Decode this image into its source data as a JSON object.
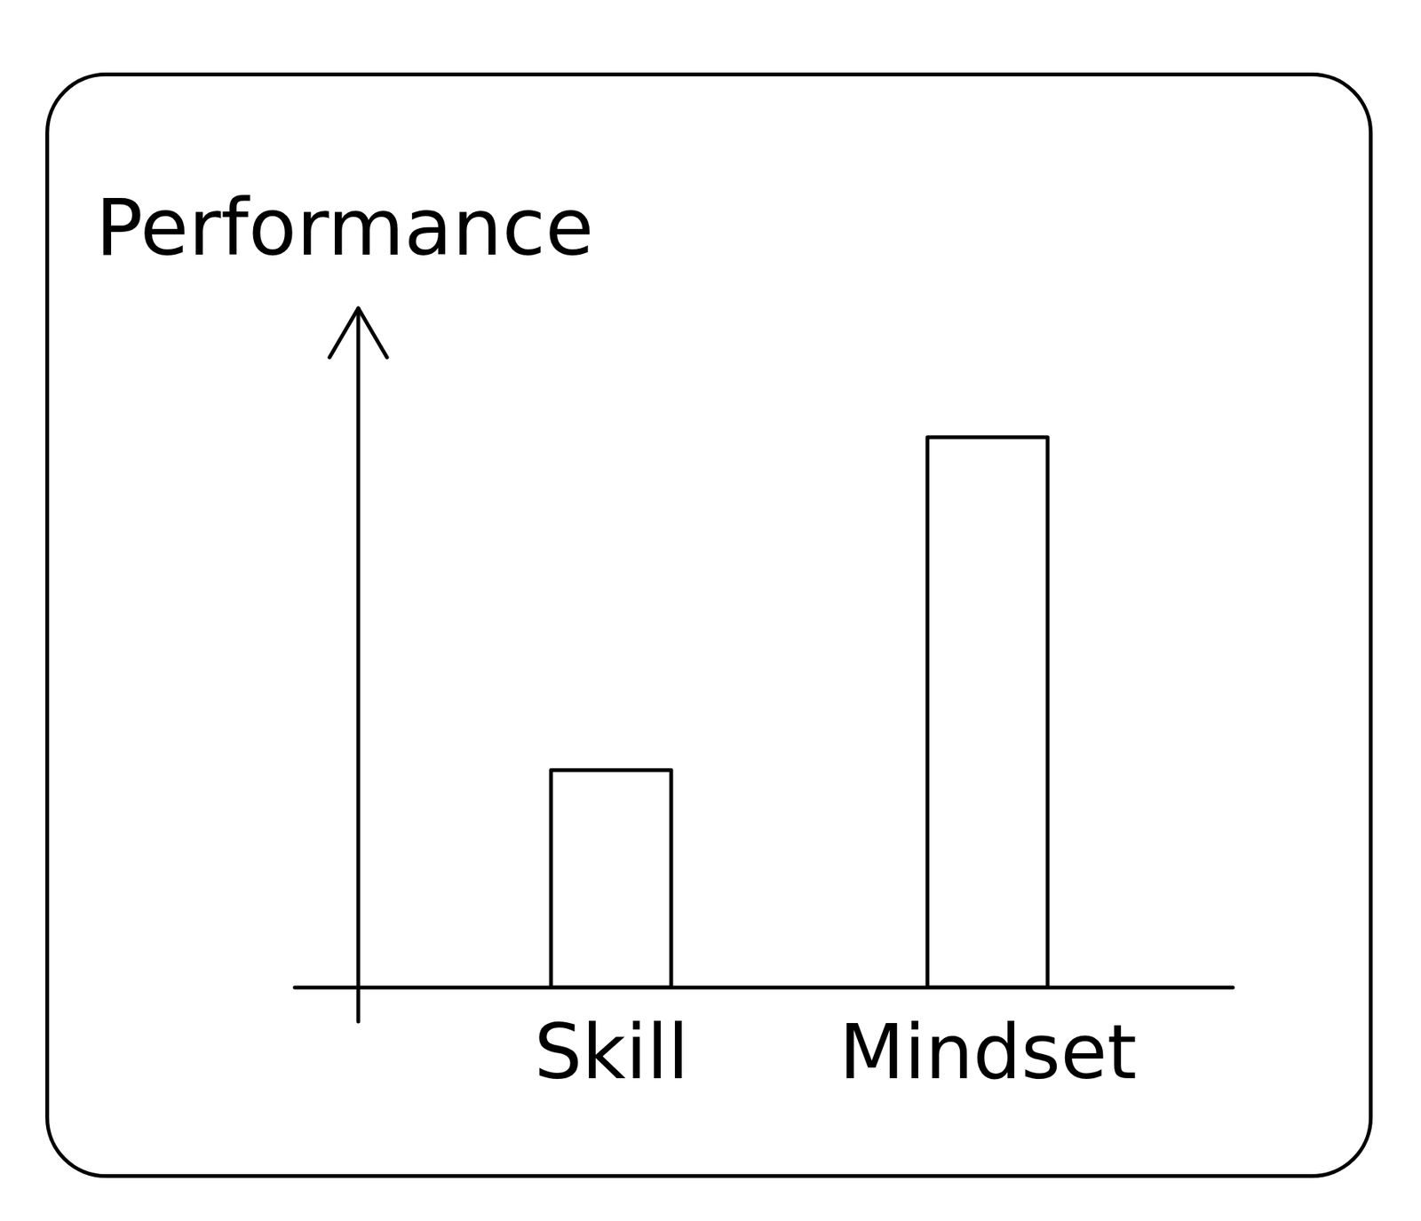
{
  "chart_data": {
    "type": "bar",
    "y_label": "Performance",
    "categories": [
      "Skill",
      "Mindset"
    ],
    "values": [
      32,
      81
    ],
    "color": "#ffffff",
    "ylim": [
      0,
      100
    ],
    "yticks": [],
    "grid": false,
    "tick_labels": "x"
  }
}
